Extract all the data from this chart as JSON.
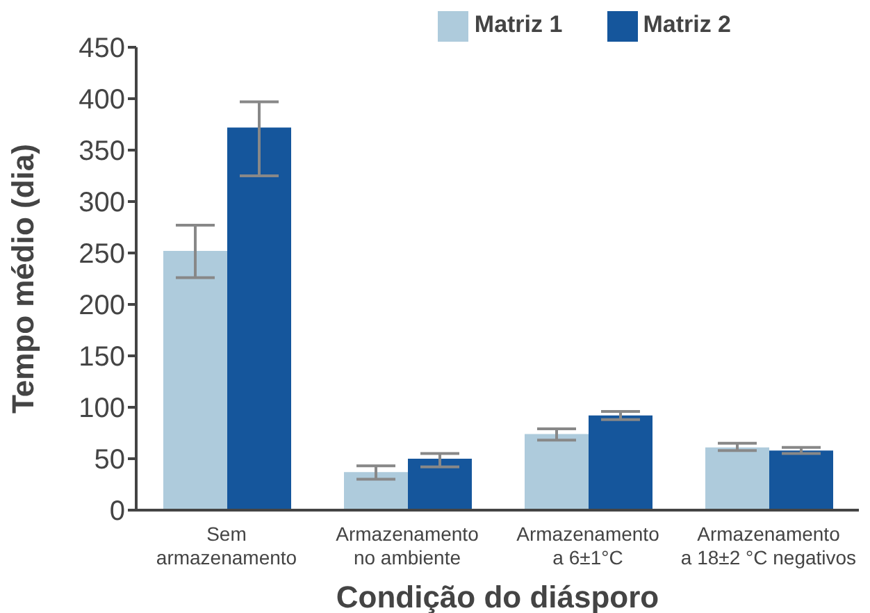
{
  "chart_data": {
    "type": "bar",
    "xlabel": "Condição do diásporo",
    "ylabel": "Tempo médio (dia)",
    "categories": [
      "Sem armazenamento",
      "Armazenamento no ambiente",
      "Armazenamento a 6±1°C",
      "Armazenamento a 18±2 °C negativos"
    ],
    "series": [
      {
        "name": "Matriz 1",
        "color": "#aecbdc",
        "values": [
          252,
          37,
          74,
          61
        ],
        "errors": [
          [
            226,
            277
          ],
          [
            30,
            43
          ],
          [
            68,
            79
          ],
          [
            58,
            65
          ]
        ]
      },
      {
        "name": "Matriz 2",
        "color": "#15569c",
        "values": [
          372,
          50,
          92,
          58
        ],
        "errors": [
          [
            325,
            397
          ],
          [
            42,
            55
          ],
          [
            88,
            96
          ],
          [
            55,
            61
          ]
        ]
      }
    ],
    "ylim": [
      0,
      450
    ],
    "yticks": [
      0,
      50,
      100,
      150,
      200,
      250,
      300,
      350,
      400,
      450
    ],
    "grid": false,
    "legend": "top right"
  }
}
